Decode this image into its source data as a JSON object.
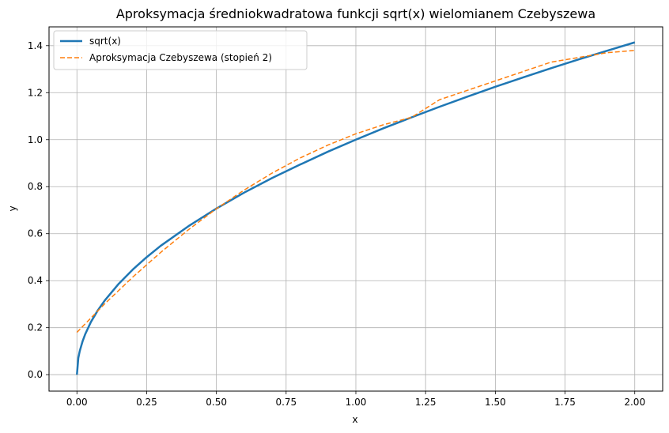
{
  "chart_data": {
    "type": "line",
    "title": "Aproksymacja średniokwadratowa funkcji sqrt(x) wielomianem Czebyszewa",
    "xlabel": "x",
    "ylabel": "y",
    "xlim": [
      -0.1,
      2.1
    ],
    "ylim": [
      -0.07,
      1.48
    ],
    "x_ticks": [
      0.0,
      0.25,
      0.5,
      0.75,
      1.0,
      1.25,
      1.5,
      1.75,
      2.0
    ],
    "x_tick_labels": [
      "0.00",
      "0.25",
      "0.50",
      "0.75",
      "1.00",
      "1.25",
      "1.50",
      "1.75",
      "2.00"
    ],
    "y_ticks": [
      0.0,
      0.2,
      0.4,
      0.6,
      0.8,
      1.0,
      1.2,
      1.4
    ],
    "y_tick_labels": [
      "0.0",
      "0.2",
      "0.4",
      "0.6",
      "0.8",
      "1.0",
      "1.2",
      "1.4"
    ],
    "grid": true,
    "legend_position": "top-left",
    "series": [
      {
        "name": "sqrt(x)",
        "color": "#1f77b4",
        "line_style": "solid",
        "x": [
          0.0,
          0.005,
          0.01,
          0.02,
          0.03,
          0.05,
          0.075,
          0.1,
          0.15,
          0.2,
          0.25,
          0.3,
          0.4,
          0.5,
          0.6,
          0.7,
          0.8,
          0.9,
          1.0,
          1.1,
          1.2,
          1.3,
          1.4,
          1.5,
          1.6,
          1.7,
          1.8,
          1.9,
          2.0
        ],
        "y": [
          0.0,
          0.071,
          0.1,
          0.141,
          0.173,
          0.224,
          0.274,
          0.316,
          0.387,
          0.447,
          0.5,
          0.548,
          0.632,
          0.707,
          0.775,
          0.837,
          0.894,
          0.949,
          1.0,
          1.049,
          1.095,
          1.14,
          1.183,
          1.225,
          1.265,
          1.304,
          1.342,
          1.378,
          1.414
        ]
      },
      {
        "name": "Aproksymacja Czebyszewa (stopień 2)",
        "color": "#ff7f0e",
        "line_style": "dashed",
        "x": [
          0.0,
          0.1,
          0.2,
          0.3,
          0.4,
          0.5,
          0.6,
          0.7,
          0.8,
          0.9,
          1.0,
          1.1,
          1.2,
          1.3,
          1.4,
          1.5,
          1.6,
          1.7,
          1.8,
          1.9,
          2.0
        ],
        "y": [
          0.18,
          0.302,
          0.415,
          0.52,
          0.617,
          0.706,
          0.786,
          0.858,
          0.922,
          0.977,
          1.025,
          1.064,
          1.095,
          1.17,
          1.21,
          1.25,
          1.29,
          1.33,
          1.35,
          1.37,
          1.38
        ]
      }
    ]
  }
}
